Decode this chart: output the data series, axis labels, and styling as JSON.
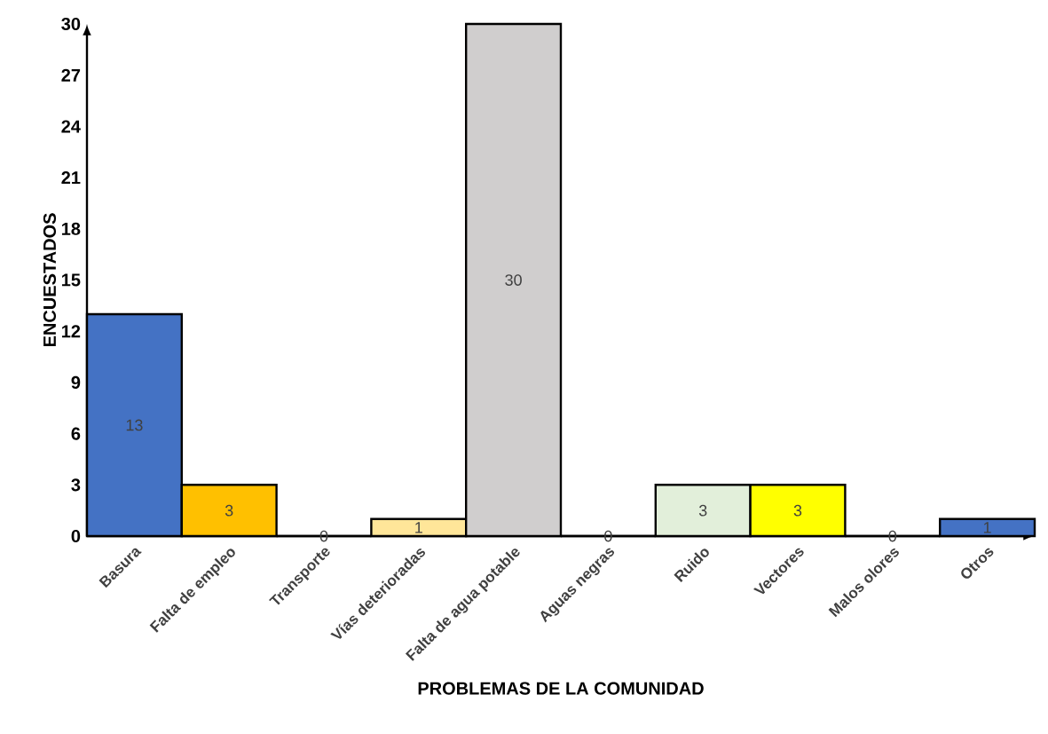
{
  "chart_data": {
    "type": "bar",
    "xlabel": "PROBLEMAS DE LA COMUNIDAD",
    "ylabel": "ENCUESTADOS",
    "categories": [
      "Basura",
      "Falta de empleo",
      "Transporte",
      "Vías deterioradas",
      "Falta de agua potable",
      "Aguas negras",
      "Ruido",
      "Vectores",
      "Malos olores",
      "Otros"
    ],
    "values": [
      13,
      3,
      0,
      1,
      30,
      0,
      3,
      3,
      0,
      1
    ],
    "colors": [
      "#4472c4",
      "#ffc000",
      "#a5a5a5",
      "#ffe699",
      "#d0cece",
      "#5b9bd5",
      "#e2efda",
      "#ffff00",
      "#70ad47",
      "#4472c4"
    ],
    "ylim": [
      0,
      30
    ],
    "yticks": [
      0,
      3,
      6,
      9,
      12,
      15,
      18,
      21,
      24,
      27,
      30
    ],
    "data_labels": true
  }
}
